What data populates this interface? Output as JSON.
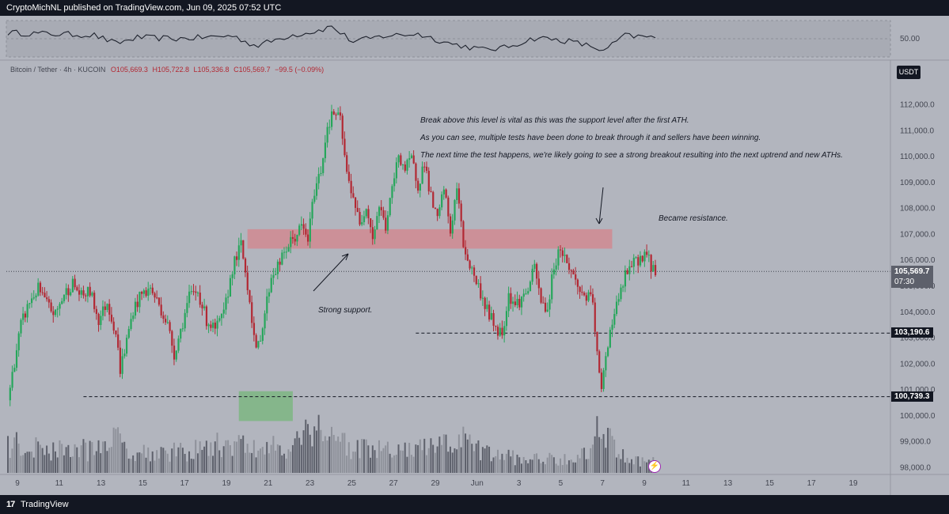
{
  "header": {
    "publish_line": "CryptoMichNL published on TradingView.com, Jun 09, 2025 07:52 UTC"
  },
  "footer": {
    "logo_text": "TradingView"
  },
  "legend": {
    "symbol": "Bitcoin / Tether · 4h · KUCOIN",
    "open": "O105,669.3",
    "high": "H105,722.8",
    "low": "L105,336.8",
    "close": "C105,569.7",
    "change": "−99.5 (−0.09%)"
  },
  "currency_label": "USDT",
  "price_tags": {
    "current_price": "105,569.7",
    "countdown": "07:30",
    "level_support": "103,190.6",
    "level_low": "100,739.3"
  },
  "annotations": {
    "note_line1": "Break above this level is vital as this was the support level after the first ATH.",
    "note_line2": "As you can see, multiple tests have been done to break through it and sellers have been winning.",
    "note_line3": "The next time the test happens, we're likely going to see a strong breakout resulting into the next uptrend and new ATHs.",
    "resistance_label": "Became resistance.",
    "support_label": "Strong support."
  },
  "colors": {
    "background": "#b2b5be",
    "up_candle": "#26a65b",
    "down_candle": "#b22833",
    "zone_red": "#d08a92",
    "zone_green": "#7fb685",
    "rsi_band": "#a8abb4"
  },
  "chart_data": {
    "type": "candlestick",
    "title": "Bitcoin / Tether · 4h · KUCOIN",
    "x_axis_ticks": [
      "9",
      "11",
      "13",
      "15",
      "17",
      "19",
      "21",
      "23",
      "25",
      "27",
      "29",
      "Jun",
      "3",
      "5",
      "7",
      "9",
      "11",
      "13",
      "15",
      "17",
      "19"
    ],
    "y_axis_ticks": [
      "98,000.0",
      "99,000.0",
      "100,000.0",
      "101,000.0",
      "102,000.0",
      "103,000.0",
      "104,000.0",
      "105,000.0",
      "106,000.0",
      "107,000.0",
      "108,000.0",
      "109,000.0",
      "110,000.0",
      "111,000.0",
      "112,000.0"
    ],
    "ylim": [
      97800,
      112900
    ],
    "resistance_zone": [
      106450,
      107200
    ],
    "horizontal_levels": [
      103190.6,
      100739.3
    ],
    "current_price": 105569.7,
    "rsi_level_label": "50.00",
    "close_path": [
      [
        0,
        100600
      ],
      [
        3,
        102100
      ],
      [
        6,
        103500
      ],
      [
        10,
        104400
      ],
      [
        14,
        104900
      ],
      [
        18,
        104300
      ],
      [
        22,
        103900
      ],
      [
        26,
        104700
      ],
      [
        30,
        105100
      ],
      [
        34,
        104600
      ],
      [
        38,
        104800
      ],
      [
        42,
        103700
      ],
      [
        46,
        104400
      ],
      [
        50,
        103200
      ],
      [
        52,
        101800
      ],
      [
        55,
        102900
      ],
      [
        58,
        104100
      ],
      [
        62,
        104700
      ],
      [
        66,
        104900
      ],
      [
        70,
        104300
      ],
      [
        74,
        103500
      ],
      [
        77,
        102400
      ],
      [
        80,
        103300
      ],
      [
        84,
        104600
      ],
      [
        88,
        104800
      ],
      [
        92,
        103700
      ],
      [
        96,
        103300
      ],
      [
        100,
        103900
      ],
      [
        104,
        105700
      ],
      [
        108,
        106600
      ],
      [
        112,
        104500
      ],
      [
        115,
        102400
      ],
      [
        118,
        103500
      ],
      [
        122,
        105400
      ],
      [
        126,
        105900
      ],
      [
        130,
        106600
      ],
      [
        133,
        106900
      ],
      [
        136,
        107300
      ],
      [
        139,
        106800
      ],
      [
        142,
        108700
      ],
      [
        145,
        109500
      ],
      [
        148,
        111200
      ],
      [
        151,
        111700
      ],
      [
        154,
        111400
      ],
      [
        157,
        109300
      ],
      [
        160,
        108500
      ],
      [
        163,
        107300
      ],
      [
        166,
        108200
      ],
      [
        169,
        106900
      ],
      [
        172,
        108100
      ],
      [
        175,
        107300
      ],
      [
        178,
        108700
      ],
      [
        181,
        110100
      ],
      [
        184,
        109500
      ],
      [
        187,
        109900
      ],
      [
        190,
        108900
      ],
      [
        193,
        109800
      ],
      [
        196,
        108400
      ],
      [
        199,
        107500
      ],
      [
        202,
        108800
      ],
      [
        205,
        107100
      ],
      [
        208,
        108800
      ],
      [
        211,
        106600
      ],
      [
        214,
        105800
      ],
      [
        217,
        105200
      ],
      [
        220,
        104500
      ],
      [
        223,
        103900
      ],
      [
        226,
        103400
      ],
      [
        229,
        103200
      ],
      [
        232,
        104700
      ],
      [
        235,
        104300
      ],
      [
        238,
        104500
      ],
      [
        241,
        104900
      ],
      [
        244,
        105700
      ],
      [
        247,
        104400
      ],
      [
        250,
        104100
      ],
      [
        253,
        105800
      ],
      [
        256,
        106500
      ],
      [
        259,
        105900
      ],
      [
        262,
        105400
      ],
      [
        265,
        104800
      ],
      [
        268,
        104600
      ],
      [
        271,
        104400
      ],
      [
        273,
        102300
      ],
      [
        275,
        100900
      ],
      [
        277,
        102400
      ],
      [
        280,
        103700
      ],
      [
        283,
        104500
      ],
      [
        286,
        105400
      ],
      [
        289,
        105800
      ],
      [
        292,
        106000
      ],
      [
        295,
        106300
      ],
      [
        298,
        105800
      ],
      [
        300,
        105570
      ]
    ],
    "volume_path": [
      [
        0,
        0.45
      ],
      [
        10,
        0.38
      ],
      [
        20,
        0.35
      ],
      [
        40,
        0.34
      ],
      [
        46,
        0.55
      ],
      [
        60,
        0.32
      ],
      [
        80,
        0.3
      ],
      [
        104,
        0.45
      ],
      [
        115,
        0.35
      ],
      [
        130,
        0.4
      ],
      [
        136,
        0.55
      ],
      [
        142,
        0.72
      ],
      [
        150,
        0.6
      ],
      [
        160,
        0.35
      ],
      [
        180,
        0.32
      ],
      [
        200,
        0.38
      ],
      [
        210,
        0.5
      ],
      [
        220,
        0.3
      ],
      [
        240,
        0.2
      ],
      [
        260,
        0.22
      ],
      [
        270,
        0.3
      ],
      [
        275,
        0.95
      ],
      [
        280,
        0.4
      ],
      [
        290,
        0.18
      ],
      [
        300,
        0.16
      ]
    ],
    "rsi_path": [
      [
        0,
        60
      ],
      [
        20,
        58
      ],
      [
        40,
        56
      ],
      [
        50,
        42
      ],
      [
        60,
        52
      ],
      [
        80,
        50
      ],
      [
        104,
        55
      ],
      [
        115,
        38
      ],
      [
        130,
        55
      ],
      [
        142,
        62
      ],
      [
        150,
        70
      ],
      [
        160,
        45
      ],
      [
        175,
        55
      ],
      [
        190,
        58
      ],
      [
        205,
        42
      ],
      [
        220,
        32
      ],
      [
        230,
        35
      ],
      [
        245,
        52
      ],
      [
        260,
        46
      ],
      [
        273,
        35
      ],
      [
        276,
        28
      ],
      [
        285,
        55
      ],
      [
        300,
        52
      ]
    ]
  }
}
